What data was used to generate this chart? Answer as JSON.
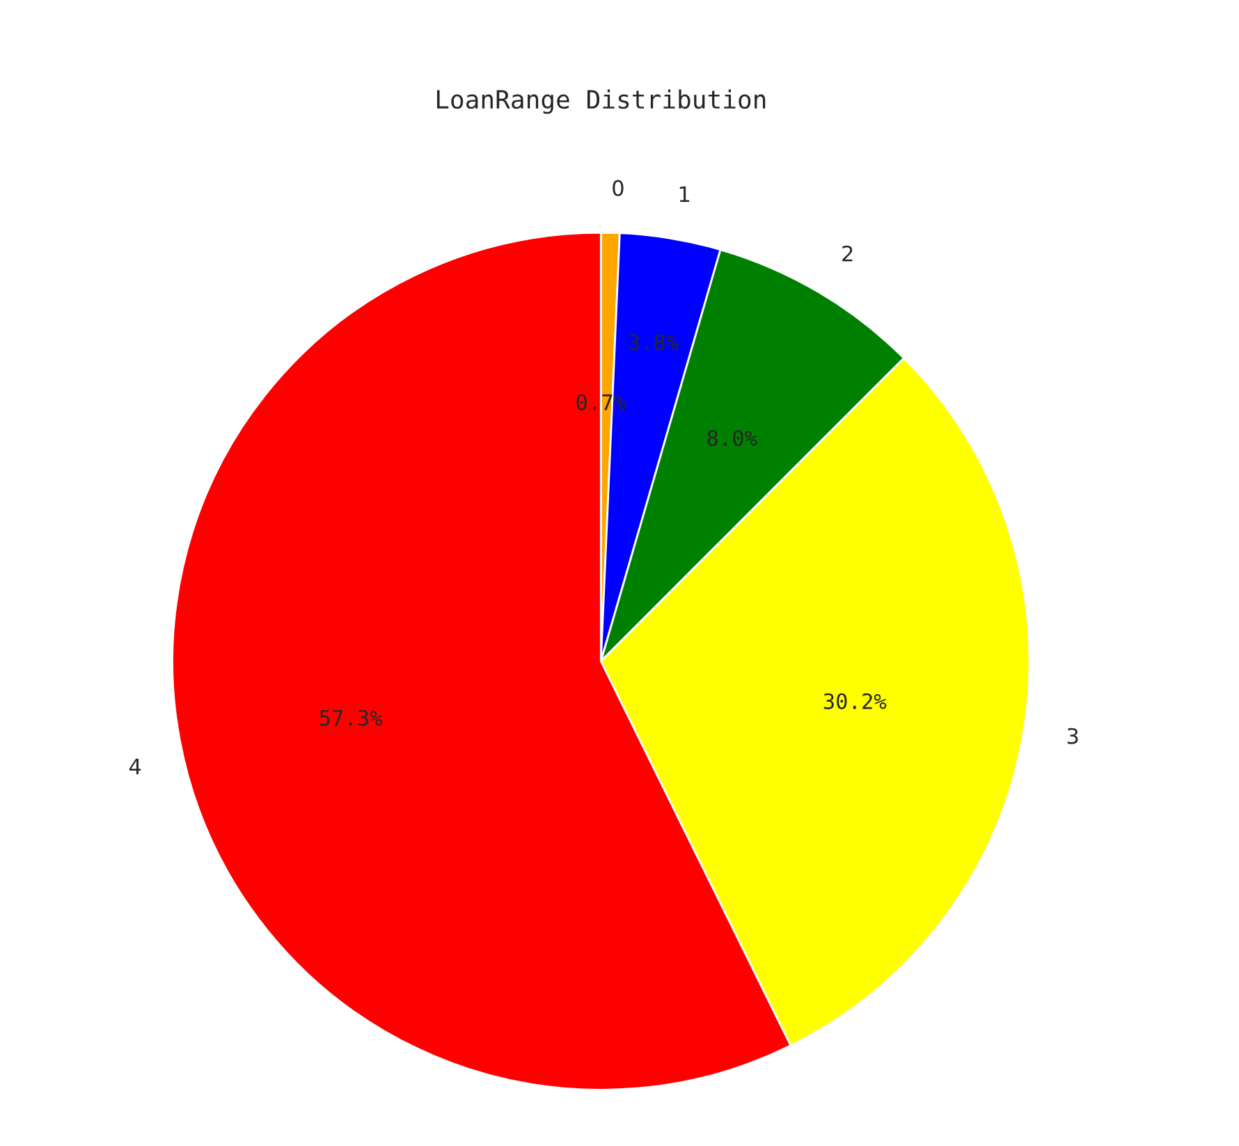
{
  "chart_data": {
    "type": "pie",
    "title": "LoanRange Distribution",
    "categories": [
      "0",
      "1",
      "2",
      "3",
      "4"
    ],
    "values": [
      0.7,
      3.8,
      8.0,
      30.2,
      57.3
    ],
    "value_labels": [
      "0.7%",
      "3.8%",
      "8.0%",
      "30.2%",
      "57.3%"
    ],
    "colors": [
      "#ffa500",
      "#0000ff",
      "#008000",
      "#ffff00",
      "#ff0000"
    ]
  }
}
